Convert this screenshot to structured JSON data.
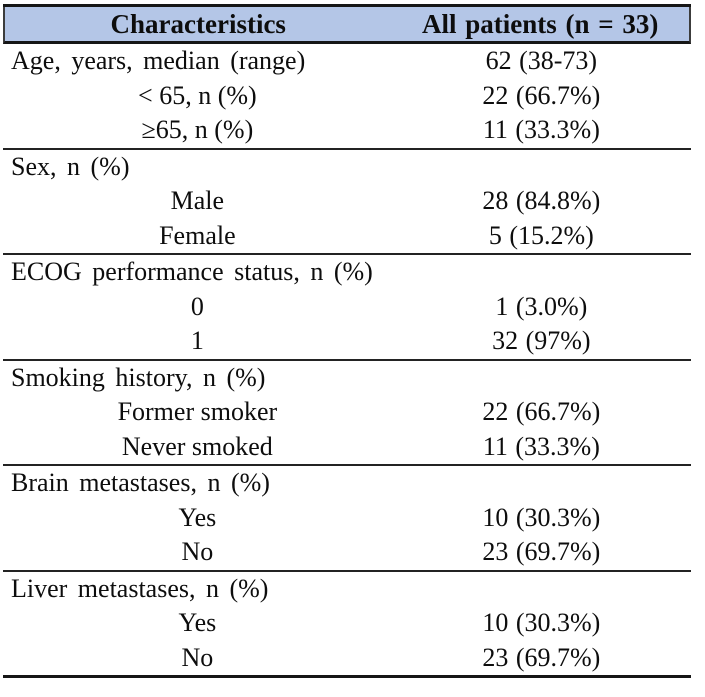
{
  "table": {
    "title_hidden": "",
    "header": {
      "col1": "Characteristics",
      "col2": "All patients (n = 33)"
    },
    "colors": {
      "header_bg": "#b4c6e7",
      "border": "#161616",
      "text": "#0d0d0d"
    },
    "sections": [
      {
        "name": "age",
        "rows": [
          {
            "label": "Age, years, median (range)",
            "value": "62 (38-73)"
          },
          {
            "label": "< 65, n (%)",
            "value": "22 (66.7%)"
          },
          {
            "label": "≥65, n (%)",
            "value": "11 (33.3%)"
          }
        ]
      },
      {
        "name": "sex",
        "rows": [
          {
            "label": "Sex, n (%)",
            "value": ""
          },
          {
            "label": "Male",
            "value": "28 (84.8%)"
          },
          {
            "label": "Female",
            "value": "5 (15.2%)"
          }
        ]
      },
      {
        "name": "ecog",
        "rows": [
          {
            "label": "ECOG performance status, n (%)",
            "value": ""
          },
          {
            "label": "0",
            "value": "1 (3.0%)"
          },
          {
            "label": "1",
            "value": "32 (97%)"
          }
        ]
      },
      {
        "name": "smoking",
        "rows": [
          {
            "label": "Smoking history, n (%)",
            "value": ""
          },
          {
            "label": "Former smoker",
            "value": "22 (66.7%)"
          },
          {
            "label": "Never smoked",
            "value": "11 (33.3%)"
          }
        ]
      },
      {
        "name": "brain-metastases",
        "rows": [
          {
            "label": "Brain metastases, n (%)",
            "value": ""
          },
          {
            "label": "Yes",
            "value": "10 (30.3%)"
          },
          {
            "label": "No",
            "value": "23 (69.7%)"
          }
        ]
      },
      {
        "name": "liver-metastases",
        "rows": [
          {
            "label": "Liver metastases, n (%)",
            "value": ""
          },
          {
            "label": "Yes",
            "value": "10 (30.3%)"
          },
          {
            "label": "No",
            "value": "23 (69.7%)"
          }
        ]
      }
    ]
  }
}
